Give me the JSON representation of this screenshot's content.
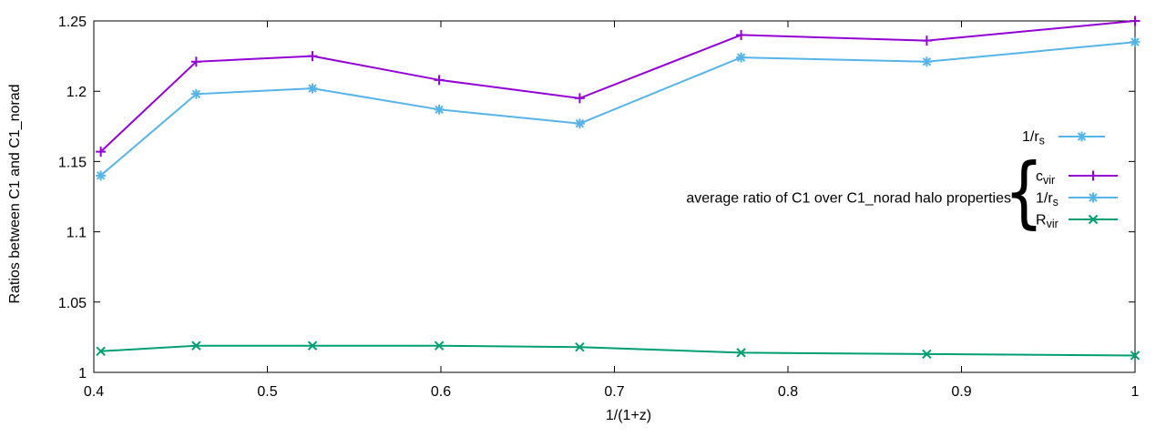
{
  "chart_data": {
    "type": "line",
    "title": "",
    "xlabel": "1/(1+z)",
    "ylabel": "Ratios between C1 and C1_norad",
    "xlim": [
      0.4,
      1.0
    ],
    "ylim": [
      1.0,
      1.25
    ],
    "grid": false,
    "x_ticks": [
      0.4,
      0.5,
      0.6,
      0.7,
      0.8,
      0.9,
      1.0
    ],
    "x_tick_labels": [
      "0.4",
      "0.5",
      "0.6",
      "0.7",
      "0.8",
      "0.9",
      "1"
    ],
    "y_ticks": [
      1.0,
      1.05,
      1.1,
      1.15,
      1.2,
      1.25
    ],
    "y_tick_labels": [
      "1",
      "1.05",
      "1.1",
      "1.15",
      "1.2",
      "1.25"
    ],
    "x": [
      0.404,
      0.459,
      0.526,
      0.599,
      0.68,
      0.773,
      0.88,
      1.0
    ],
    "series": [
      {
        "name": "c_vir",
        "label_main": "c",
        "label_sub": "vir",
        "color": "#9400d3",
        "marker": "plus",
        "values": [
          1.157,
          1.221,
          1.225,
          1.208,
          1.195,
          1.24,
          1.236,
          1.25
        ]
      },
      {
        "name": "1/r_s",
        "label_main": "1/r",
        "label_sub": "s",
        "color": "#56b4e9",
        "marker": "asterisk",
        "values": [
          1.14,
          1.198,
          1.202,
          1.187,
          1.177,
          1.224,
          1.221,
          1.235
        ]
      },
      {
        "name": "R_vir",
        "label_main": "R",
        "label_sub": "vir",
        "color": "#009e73",
        "marker": "cross",
        "values": [
          1.015,
          1.019,
          1.019,
          1.019,
          1.018,
          1.014,
          1.013,
          1.012
        ]
      }
    ],
    "legend": {
      "standalone_entry": {
        "series": "1/r_s"
      },
      "group_title": "average ratio of C1 over C1_norad halo properties",
      "group_brace": "{",
      "group_entries": [
        "c_vir",
        "1/r_s",
        "R_vir"
      ],
      "position": "right-middle"
    },
    "axis_color": "#000000",
    "background_color": "#ffffff"
  }
}
